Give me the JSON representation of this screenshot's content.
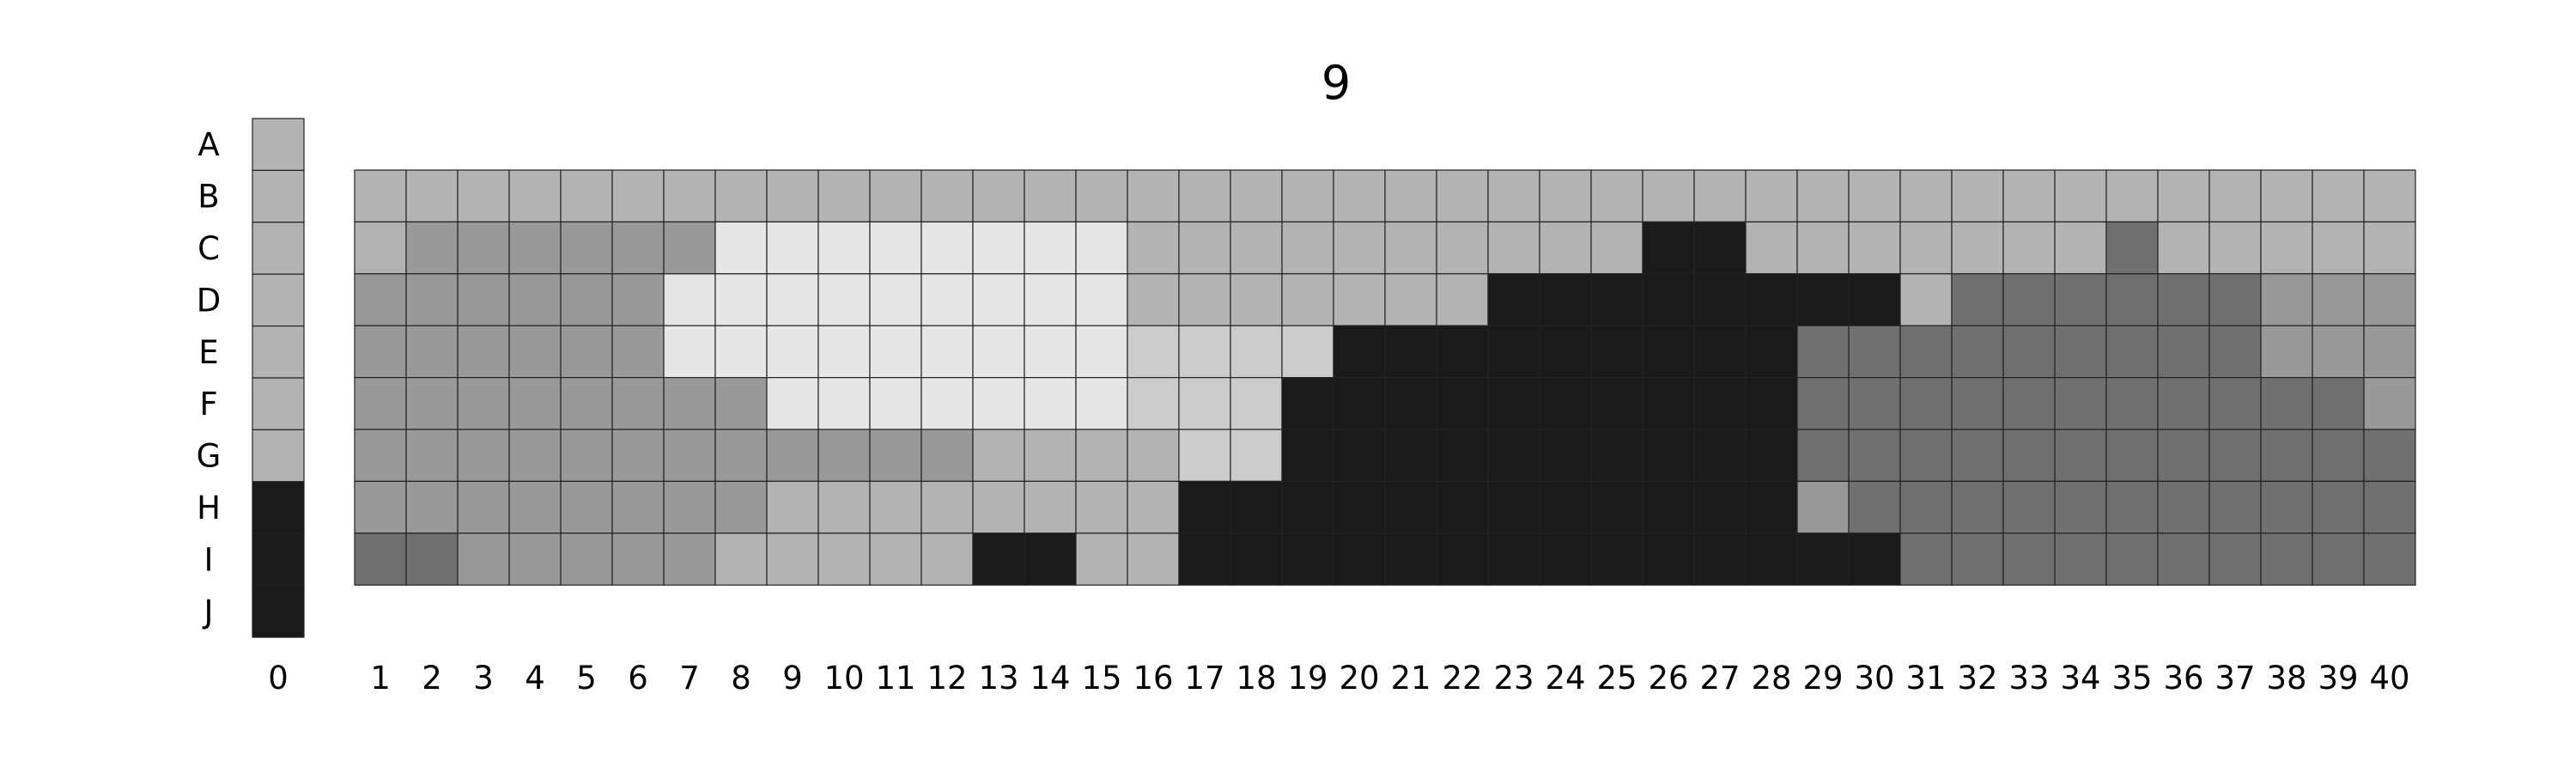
{
  "title": "9",
  "chart_data": {
    "type": "heatmap",
    "title": "9",
    "rows": [
      "A",
      "B",
      "C",
      "D",
      "E",
      "F",
      "G",
      "H",
      "I",
      "J"
    ],
    "column0": {
      "label": "0",
      "values": [
        "L",
        "L",
        "L",
        "L",
        "L",
        "L",
        "L",
        "K",
        "K",
        "K"
      ]
    },
    "columns": [
      "1",
      "2",
      "3",
      "4",
      "5",
      "6",
      "7",
      "8",
      "9",
      "10",
      "11",
      "12",
      "13",
      "14",
      "15",
      "16",
      "17",
      "18",
      "19",
      "20",
      "21",
      "22",
      "23",
      "24",
      "25",
      "26",
      "27",
      "28",
      "29",
      "30",
      "31",
      "32",
      "33",
      "34",
      "35",
      "36",
      "37",
      "38",
      "39",
      "40"
    ],
    "grid_rows": [
      "B",
      "C",
      "D",
      "E",
      "F",
      "G",
      "H",
      "I"
    ],
    "palette": {
      "W": "#e6e6e6",
      "V": "#cccccc",
      "L": "#b3b3b3",
      "M": "#999999",
      "D": "#707070",
      "K": "#1a1a1a"
    },
    "grid": [
      "LLLLLLLLLLLLLLLLLLLLLLLLLLLLLLLLLLLLLLLL",
      "LMMMMMMWWWWWWWWLLLLLLLLLLKKLLLLLLLDLLLLL",
      "MMMMMMWWWWWWWWWLLLLLLLKKKKKKKKLDDDDDDMMM",
      "MMMMMMWWWWWWWWWVVVVKKKKKKKKKDDDDDDDDDMMM",
      "MMMMMMMMWWWWWWWVVVKKKKKKKKKKDDDDDDDDDDDM",
      "MMMMMMMMMMMMLLLLVVKKKKKKKKKKDDDDDDDDDDDD",
      "MMMMMMMMLLLLLLLLKKKKKKKKKKKKMDDDDDDDDDDD",
      "DDMMMMMLLLLLKKLLKKKKKKKKKKKKKKDDDDDDDDDD"
    ]
  }
}
